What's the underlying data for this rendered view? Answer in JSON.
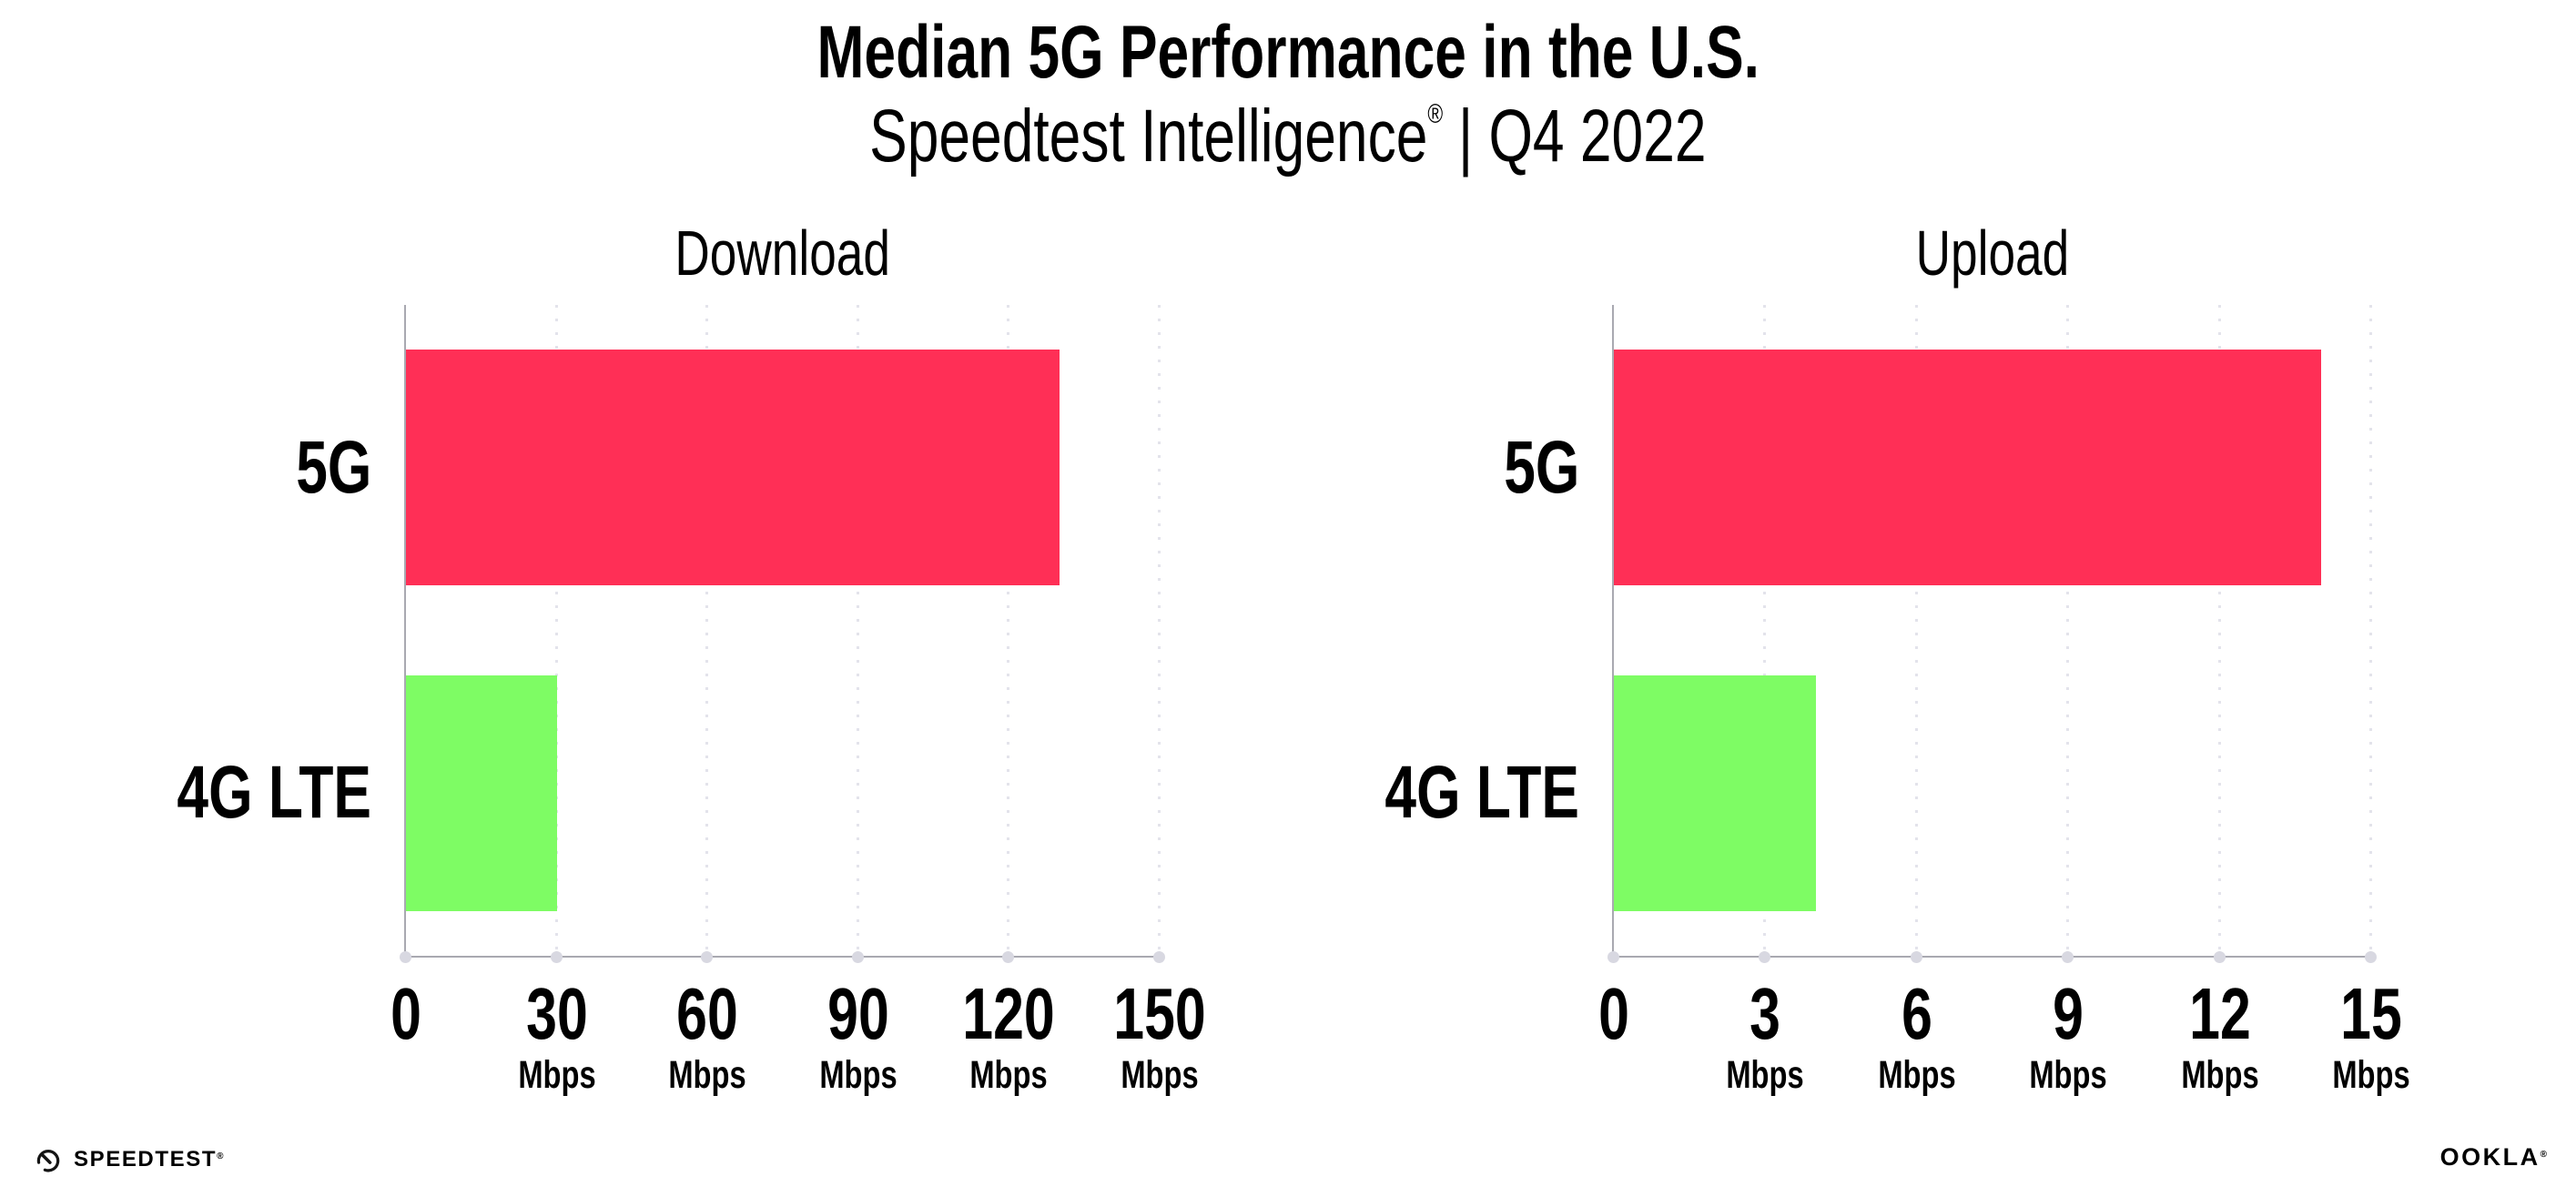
{
  "header": {
    "title": "Median 5G Performance in the U.S.",
    "subtitle_brand": "Speedtest Intelligence",
    "subtitle_reg": "®",
    "subtitle_rest": "| Q4 2022"
  },
  "colors": {
    "bar_5g": "#FF2F56",
    "bar_4g_lte": "#7EFC64",
    "axis_line": "#a9a9b1",
    "gridline_dots": "#e3e3eb",
    "tick_dots": "#d8d8e1",
    "text": "#000000"
  },
  "chart_data": [
    {
      "type": "bar",
      "orientation": "horizontal",
      "title": "Download",
      "categories": [
        "5G",
        "4G LTE"
      ],
      "values": [
        130,
        30
      ],
      "unit": "Mbps",
      "xlim": [
        0,
        150
      ],
      "xticks": [
        0,
        30,
        60,
        90,
        120,
        150
      ],
      "bar_colors": [
        "#FF2F56",
        "#7EFC64"
      ],
      "grid": "dotted vertical gridlines at each tick, no legend"
    },
    {
      "type": "bar",
      "orientation": "horizontal",
      "title": "Upload",
      "categories": [
        "5G",
        "4G LTE"
      ],
      "values": [
        14,
        4
      ],
      "unit": "Mbps",
      "xlim": [
        0,
        15
      ],
      "xticks": [
        0,
        3,
        6,
        9,
        12,
        15
      ],
      "bar_colors": [
        "#FF2F56",
        "#7EFC64"
      ],
      "grid": "dotted vertical gridlines at each tick, no legend"
    }
  ],
  "footer": {
    "speedtest_text": "SPEEDTEST",
    "speedtest_reg": "®",
    "ookla_text": "OOKLA",
    "ookla_reg": "®"
  }
}
